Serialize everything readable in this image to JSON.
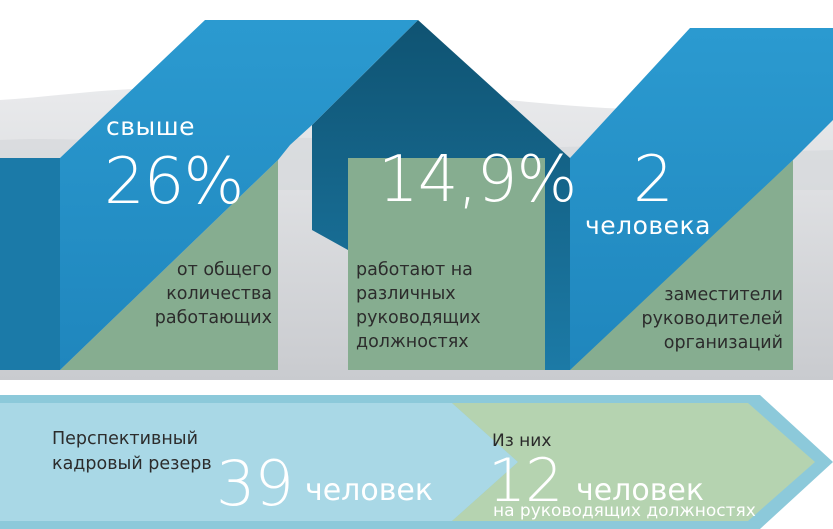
{
  "stats": [
    {
      "prefix": "свыше",
      "value": "26%",
      "description": "от общего количества работающих"
    },
    {
      "value": "14,9%",
      "description": "работают на различных руководящих должностях"
    },
    {
      "value": "2",
      "suffix": "человека",
      "description": "заместители руководителей организаций"
    }
  ],
  "reserve": {
    "label": "Перспективный кадровый резерв",
    "count": "39",
    "count_unit": "человек",
    "sub_prefix": "Из них",
    "sub_count": "12",
    "sub_unit": "человек",
    "sub_caption": "на руководящих должностях"
  },
  "colors": {
    "blue": "#2592c9",
    "dark_blue": "#186b94",
    "green": "#84ac8f",
    "banner_light": "#a9d8e6",
    "banner_green": "#b2d1ae"
  }
}
